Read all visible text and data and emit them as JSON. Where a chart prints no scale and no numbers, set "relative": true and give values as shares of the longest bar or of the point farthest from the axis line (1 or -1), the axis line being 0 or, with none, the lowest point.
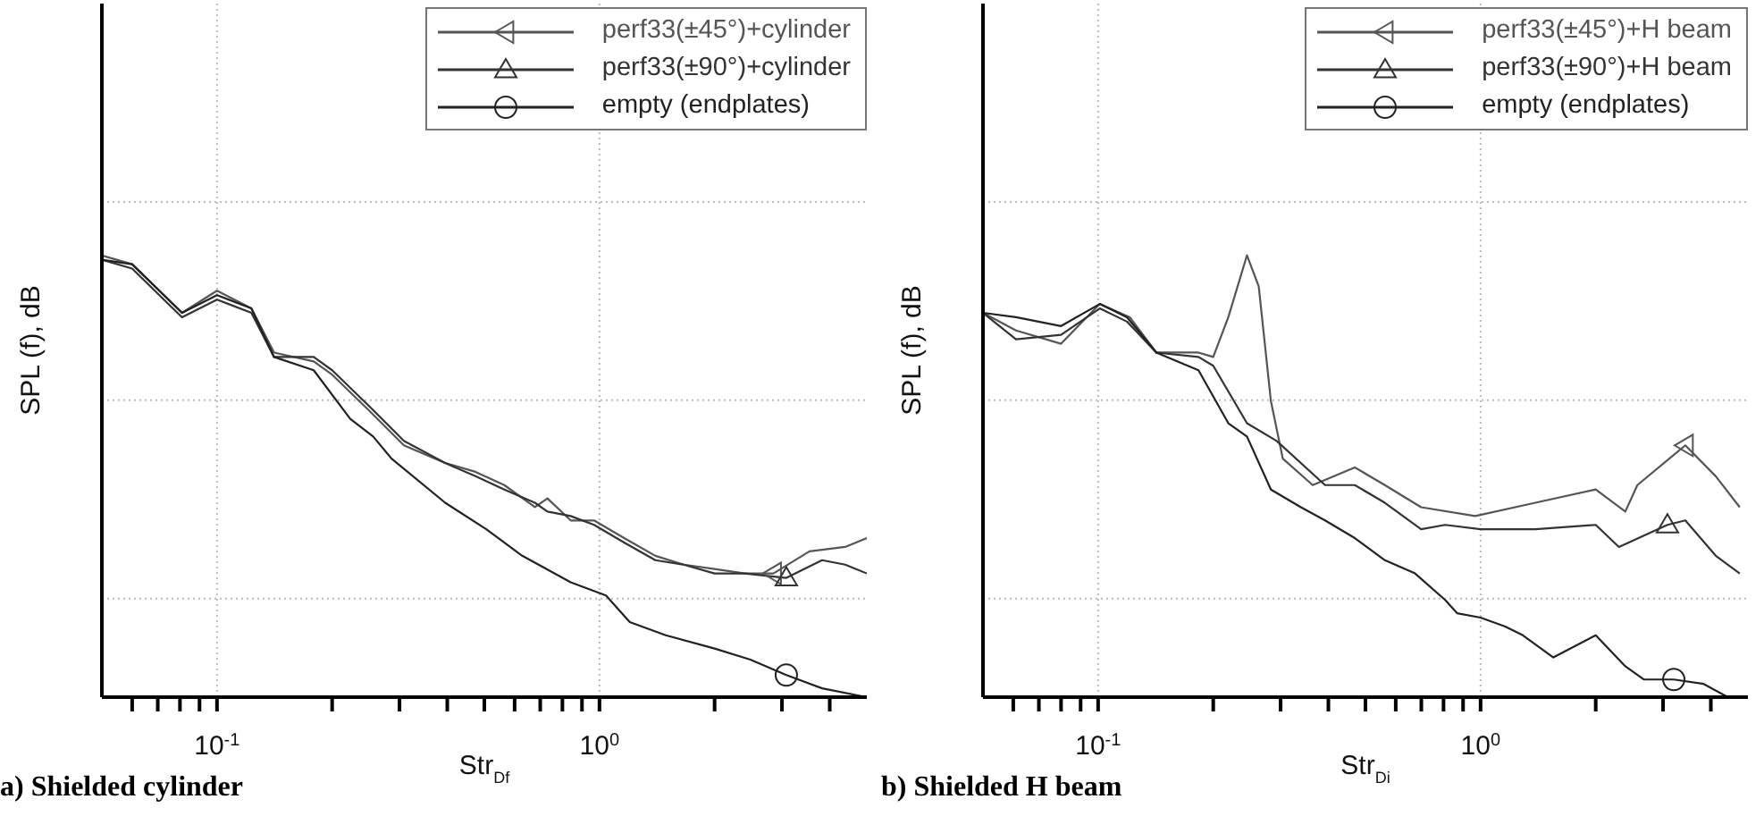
{
  "chart_data": [
    {
      "type": "line",
      "title": "a) Shielded cylinder",
      "xlabel": "Str$_{Df}$",
      "ylabel": "SPL (f), dB",
      "relative": true,
      "log": "x",
      "grid": true,
      "legend": "top right",
      "xlim": [
        0.05,
        5
      ],
      "xticks": [
        {
          "value": 0.06,
          "label": null
        },
        {
          "value": 0.07,
          "label": null
        },
        {
          "value": 0.08,
          "label": null
        },
        {
          "value": 0.09,
          "label": null
        },
        {
          "value": 0.1,
          "label": "10$^{-1}$"
        },
        {
          "value": 0.2,
          "label": null
        },
        {
          "value": 0.3,
          "label": null
        },
        {
          "value": 0.4,
          "label": null
        },
        {
          "value": 0.5,
          "label": null
        },
        {
          "value": 0.6,
          "label": null
        },
        {
          "value": 0.7,
          "label": null
        },
        {
          "value": 0.8,
          "label": null
        },
        {
          "value": 0.9,
          "label": null
        },
        {
          "value": 1,
          "label": "10$^{0}$"
        },
        {
          "value": 2,
          "label": null
        },
        {
          "value": 3,
          "label": null
        },
        {
          "value": 4,
          "label": null
        }
      ],
      "series": [
        {
          "name": "perf33(±45°)+cylinder",
          "color": "#555555",
          "x": [
            0.05,
            0.06,
            0.081,
            0.1,
            0.123,
            0.141,
            0.179,
            0.2,
            0.249,
            0.308,
            0.395,
            0.474,
            0.564,
            0.678,
            0.731,
            0.841,
            0.968,
            1.16,
            1.4,
            1.66,
            2.0,
            2.4,
            2.85,
            3.54,
            4.39,
            5.0
          ],
          "values": [
            1.0,
            0.98,
            0.87,
            0.92,
            0.88,
            0.78,
            0.76,
            0.73,
            0.65,
            0.57,
            0.53,
            0.51,
            0.48,
            0.43,
            0.45,
            0.4,
            0.4,
            0.36,
            0.32,
            0.3,
            0.29,
            0.28,
            0.28,
            0.33,
            0.34,
            0.36
          ]
        },
        {
          "name": "perf33(±90°)+cylinder",
          "color": "#333333",
          "x": [
            0.05,
            0.06,
            0.081,
            0.1,
            0.123,
            0.141,
            0.179,
            0.2,
            0.249,
            0.308,
            0.395,
            0.474,
            0.564,
            0.678,
            0.731,
            0.841,
            0.968,
            1.16,
            1.4,
            1.66,
            2.0,
            2.4,
            3.08,
            3.82,
            4.39,
            5.0
          ],
          "values": [
            0.99,
            0.97,
            0.86,
            0.9,
            0.87,
            0.77,
            0.77,
            0.74,
            0.66,
            0.58,
            0.53,
            0.5,
            0.47,
            0.44,
            0.42,
            0.41,
            0.39,
            0.35,
            0.31,
            0.3,
            0.28,
            0.28,
            0.27,
            0.31,
            0.3,
            0.28
          ]
        },
        {
          "name": "empty (endplates)",
          "color": "#222222",
          "x": [
            0.05,
            0.06,
            0.081,
            0.1,
            0.123,
            0.141,
            0.179,
            0.223,
            0.256,
            0.286,
            0.395,
            0.506,
            0.628,
            0.841,
            1.04,
            1.2,
            1.49,
            2.0,
            2.48,
            3.08,
            3.82,
            5.0
          ],
          "values": [
            0.99,
            0.98,
            0.87,
            0.91,
            0.88,
            0.77,
            0.74,
            0.63,
            0.59,
            0.54,
            0.44,
            0.38,
            0.32,
            0.26,
            0.23,
            0.17,
            0.14,
            0.11,
            0.085,
            0.05,
            0.02,
            0.0
          ]
        }
      ]
    },
    {
      "type": "line",
      "title": "b) Shielded H beam",
      "xlabel": "Str$_{Di}$",
      "ylabel": "SPL (f), dB",
      "relative": true,
      "log": "x",
      "grid": true,
      "legend": "top right",
      "xlim": [
        0.05,
        5
      ],
      "xticks": [
        {
          "value": 0.06,
          "label": null
        },
        {
          "value": 0.07,
          "label": null
        },
        {
          "value": 0.08,
          "label": null
        },
        {
          "value": 0.09,
          "label": null
        },
        {
          "value": 0.1,
          "label": "10$^{-1}$"
        },
        {
          "value": 0.2,
          "label": null
        },
        {
          "value": 0.3,
          "label": null
        },
        {
          "value": 0.4,
          "label": null
        },
        {
          "value": 0.5,
          "label": null
        },
        {
          "value": 0.6,
          "label": null
        },
        {
          "value": 0.7,
          "label": null
        },
        {
          "value": 0.8,
          "label": null
        },
        {
          "value": 0.9,
          "label": null
        },
        {
          "value": 1,
          "label": "10$^{0}$"
        },
        {
          "value": 2,
          "label": null
        },
        {
          "value": 3,
          "label": null
        },
        {
          "value": 4,
          "label": null
        }
      ],
      "series": [
        {
          "name": "perf33(±45°)+H beam",
          "color": "#555555",
          "x": [
            0.05,
            0.061,
            0.08,
            0.101,
            0.121,
            0.142,
            0.183,
            0.2,
            0.219,
            0.245,
            0.263,
            0.283,
            0.304,
            0.364,
            0.469,
            0.562,
            0.699,
            0.968,
            1.39,
            2.0,
            2.39,
            2.57,
            3.43,
            4.12,
            4.76
          ],
          "values": [
            0.87,
            0.83,
            0.8,
            0.89,
            0.86,
            0.78,
            0.78,
            0.77,
            0.86,
            1.0,
            0.93,
            0.67,
            0.54,
            0.48,
            0.52,
            0.48,
            0.43,
            0.41,
            0.44,
            0.47,
            0.42,
            0.48,
            0.57,
            0.5,
            0.43
          ]
        },
        {
          "name": "perf33(±90°)+H beam",
          "color": "#333333",
          "x": [
            0.05,
            0.061,
            0.08,
            0.101,
            0.119,
            0.142,
            0.183,
            0.2,
            0.245,
            0.293,
            0.392,
            0.469,
            0.562,
            0.699,
            0.808,
            1.0,
            1.39,
            2.0,
            2.3,
            3.08,
            3.43,
            4.12,
            4.76
          ],
          "values": [
            0.87,
            0.81,
            0.82,
            0.88,
            0.85,
            0.78,
            0.77,
            0.75,
            0.62,
            0.58,
            0.48,
            0.48,
            0.44,
            0.38,
            0.39,
            0.38,
            0.38,
            0.39,
            0.34,
            0.39,
            0.4,
            0.32,
            0.28
          ]
        },
        {
          "name": "empty (endplates)",
          "color": "#222222",
          "x": [
            0.05,
            0.061,
            0.08,
            0.101,
            0.119,
            0.142,
            0.183,
            0.219,
            0.245,
            0.283,
            0.339,
            0.392,
            0.469,
            0.562,
            0.674,
            0.808,
            0.868,
            1.0,
            1.16,
            1.29,
            1.55,
            2.0,
            2.39,
            2.67,
            3.2,
            3.83,
            4.43
          ],
          "values": [
            0.87,
            0.86,
            0.84,
            0.89,
            0.86,
            0.78,
            0.74,
            0.62,
            0.59,
            0.47,
            0.43,
            0.4,
            0.36,
            0.31,
            0.28,
            0.22,
            0.19,
            0.18,
            0.16,
            0.14,
            0.09,
            0.14,
            0.07,
            0.04,
            0.04,
            0.03,
            0.0
          ]
        }
      ]
    }
  ]
}
